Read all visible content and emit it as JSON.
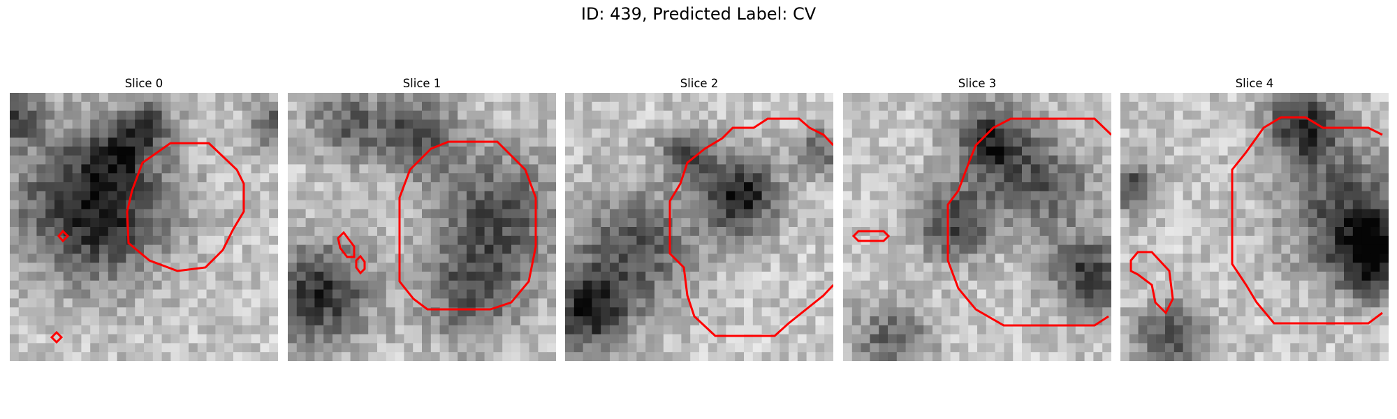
{
  "figure": {
    "title": "ID: 439, Predicted Label: CV"
  },
  "colors": {
    "contour": "#ff0000",
    "background": "#ffffff"
  },
  "slices": [
    {
      "label": "Slice 0"
    },
    {
      "label": "Slice 1"
    },
    {
      "label": "Slice 2"
    },
    {
      "label": "Slice 3"
    },
    {
      "label": "Slice 4"
    }
  ]
}
